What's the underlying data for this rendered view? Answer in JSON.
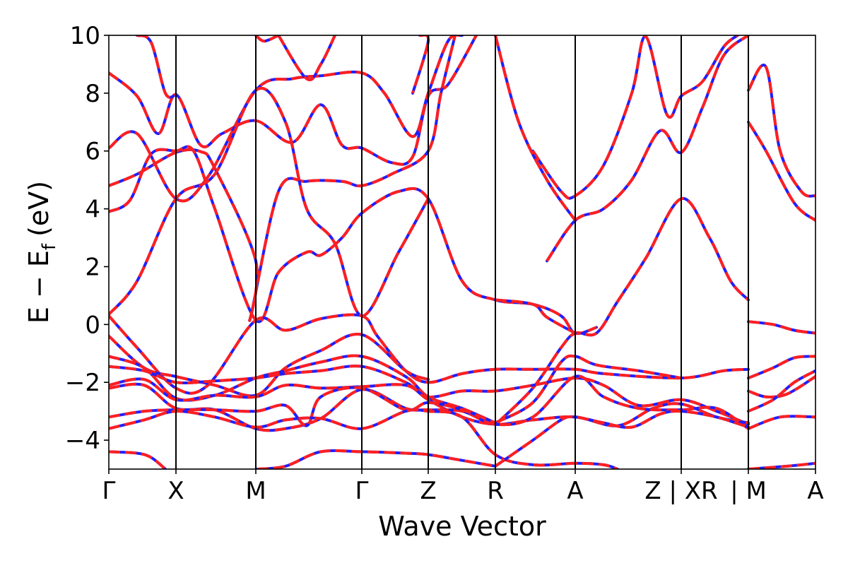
{
  "chart_data": {
    "type": "line",
    "title": "",
    "xlabel": "Wave Vector",
    "ylabel": "E − E",
    "ylabel_subscript": "f",
    "ylabel_unit": "(eV)",
    "ylim": [
      -5,
      10
    ],
    "yticks": [
      {
        "value": -4,
        "label": "−4"
      },
      {
        "value": -2,
        "label": "−2"
      },
      {
        "value": 0,
        "label": "0"
      },
      {
        "value": 2,
        "label": "2"
      },
      {
        "value": 4,
        "label": "4"
      },
      {
        "value": 6,
        "label": "6"
      },
      {
        "value": 8,
        "label": "8"
      },
      {
        "value": 10,
        "label": "10"
      }
    ],
    "xlim": [
      0,
      1
    ],
    "kpoints": [
      {
        "label": "Γ",
        "x": 0.0
      },
      {
        "label": "X",
        "x": 0.095
      },
      {
        "label": "M",
        "x": 0.208
      },
      {
        "label": "Γ",
        "x": 0.358
      },
      {
        "label": "Z",
        "x": 0.452
      },
      {
        "label": "R",
        "x": 0.547
      },
      {
        "label": "A",
        "x": 0.66
      },
      {
        "label": "Z | XR",
        "x": 0.81
      },
      {
        "label": "| M",
        "x": 0.905
      },
      {
        "label": "A",
        "x": 1.0
      }
    ],
    "legend": "none",
    "grid": false,
    "series_colors": {
      "solid": "#1f1fff",
      "dashed": "#ff1f1f"
    },
    "bands": [
      [
        [
          0,
          8.7
        ],
        [
          0.04,
          7.9
        ],
        [
          0.07,
          6.6
        ],
        [
          0.095,
          7.95
        ],
        [
          0.13,
          6.2
        ],
        [
          0.16,
          6.6
        ],
        [
          0.208,
          7.05
        ],
        [
          0.26,
          6.3
        ],
        [
          0.3,
          7.6
        ],
        [
          0.33,
          6.2
        ],
        [
          0.358,
          6.1
        ],
        [
          0.4,
          5.6
        ],
        [
          0.43,
          5.8
        ],
        [
          0.452,
          7.9
        ],
        [
          0.48,
          8.3
        ],
        [
          0.52,
          10.0
        ]
      ],
      [
        [
          0,
          6.1
        ],
        [
          0.04,
          6.6
        ],
        [
          0.095,
          4.35
        ],
        [
          0.14,
          5.1
        ],
        [
          0.208,
          8.1
        ],
        [
          0.26,
          8.5
        ],
        [
          0.3,
          8.6
        ],
        [
          0.358,
          8.7
        ],
        [
          0.39,
          8.0
        ],
        [
          0.43,
          6.5
        ],
        [
          0.452,
          8.0
        ],
        [
          0.48,
          9.8
        ],
        [
          0.5,
          10.0
        ]
      ],
      [
        [
          0,
          4.8
        ],
        [
          0.04,
          5.2
        ],
        [
          0.095,
          5.95
        ],
        [
          0.13,
          5.98
        ],
        [
          0.15,
          5.4
        ],
        [
          0.208,
          2.2
        ],
        [
          0.2,
          0.2
        ],
        [
          0.24,
          4.6
        ],
        [
          0.28,
          4.95
        ],
        [
          0.33,
          4.95
        ],
        [
          0.358,
          4.8
        ],
        [
          0.4,
          5.2
        ],
        [
          0.452,
          6.0
        ],
        [
          0.47,
          8.0
        ],
        [
          0.49,
          10.0
        ]
      ],
      [
        [
          0,
          3.9
        ],
        [
          0.03,
          4.3
        ],
        [
          0.06,
          5.9
        ],
        [
          0.095,
          6.0
        ],
        [
          0.12,
          6.0
        ],
        [
          0.15,
          4.0
        ],
        [
          0.208,
          0.15
        ],
        [
          0.24,
          1.8
        ],
        [
          0.28,
          2.5
        ],
        [
          0.3,
          2.4
        ],
        [
          0.33,
          3.0
        ],
        [
          0.358,
          3.85
        ],
        [
          0.41,
          4.6
        ],
        [
          0.452,
          4.35
        ],
        [
          0.5,
          1.5
        ],
        [
          0.547,
          0.85
        ],
        [
          0.6,
          0.7
        ],
        [
          0.64,
          0.3
        ],
        [
          0.66,
          -0.3
        ],
        [
          0.69,
          -0.1
        ]
      ],
      [
        [
          0,
          0.35
        ],
        [
          0.04,
          1.5
        ],
        [
          0.095,
          4.35
        ],
        [
          0.15,
          5.2
        ],
        [
          0.208,
          8.1
        ],
        [
          0.25,
          7.0
        ],
        [
          0.28,
          4.0
        ],
        [
          0.32,
          2.8
        ],
        [
          0.358,
          0.3
        ],
        [
          0.41,
          2.5
        ],
        [
          0.452,
          4.35
        ]
      ],
      [
        [
          0,
          0.3
        ],
        [
          0.04,
          -0.8
        ],
        [
          0.095,
          -2.2
        ],
        [
          0.14,
          -2.1
        ],
        [
          0.208,
          0.15
        ],
        [
          0.25,
          -0.2
        ],
        [
          0.3,
          0.2
        ],
        [
          0.358,
          0.3
        ],
        [
          0.38,
          -0.4
        ],
        [
          0.42,
          -1.6
        ],
        [
          0.452,
          -2.0
        ],
        [
          0.5,
          -1.7
        ],
        [
          0.547,
          -1.55
        ],
        [
          0.6,
          -1.55
        ],
        [
          0.66,
          -1.55
        ],
        [
          0.7,
          -1.7
        ],
        [
          0.81,
          -1.85
        ],
        [
          0.87,
          -1.6
        ],
        [
          0.905,
          -1.55
        ]
      ],
      [
        [
          0.55,
          -3.4
        ],
        [
          0.6,
          -2.2
        ],
        [
          0.64,
          -0.8
        ],
        [
          0.66,
          -0.3
        ],
        [
          0.69,
          -0.3
        ],
        [
          0.72,
          0.8
        ],
        [
          0.76,
          2.3
        ],
        [
          0.81,
          4.35
        ],
        [
          0.85,
          3.0
        ],
        [
          0.88,
          1.5
        ],
        [
          0.905,
          0.85
        ]
      ],
      [
        [
          0.547,
          -3.4
        ],
        [
          0.6,
          -2.7
        ],
        [
          0.64,
          -1.3
        ],
        [
          0.66,
          -1.1
        ],
        [
          0.69,
          -1.4
        ],
        [
          0.75,
          -1.6
        ],
        [
          0.81,
          -1.85
        ]
      ],
      [
        [
          0.62,
          2.2
        ],
        [
          0.66,
          3.6
        ],
        [
          0.7,
          4.0
        ],
        [
          0.74,
          5.0
        ],
        [
          0.78,
          6.7
        ],
        [
          0.81,
          5.95
        ],
        [
          0.84,
          7.5
        ],
        [
          0.87,
          9.3
        ],
        [
          0.905,
          10.0
        ]
      ],
      [
        [
          0.6,
          6.0
        ],
        [
          0.64,
          4.6
        ],
        [
          0.66,
          4.45
        ],
        [
          0.7,
          5.5
        ],
        [
          0.74,
          8.0
        ],
        [
          0.76,
          9.95
        ],
        [
          0.79,
          7.25
        ],
        [
          0.81,
          7.9
        ],
        [
          0.84,
          8.4
        ],
        [
          0.87,
          9.6
        ],
        [
          0.89,
          10.0
        ]
      ],
      [
        [
          0.905,
          8.1
        ],
        [
          0.93,
          8.9
        ],
        [
          0.95,
          6.0
        ],
        [
          0.98,
          4.6
        ],
        [
          1.0,
          4.45
        ]
      ],
      [
        [
          0.905,
          7.0
        ],
        [
          0.93,
          6.0
        ],
        [
          0.97,
          4.2
        ],
        [
          1.0,
          3.6
        ]
      ],
      [
        [
          0.905,
          0.1
        ],
        [
          0.94,
          0.0
        ],
        [
          0.97,
          -0.2
        ],
        [
          1.0,
          -0.3
        ]
      ],
      [
        [
          0.905,
          -1.85
        ],
        [
          0.94,
          -1.5
        ],
        [
          0.97,
          -1.15
        ],
        [
          1.0,
          -1.1
        ]
      ],
      [
        [
          0.905,
          -2.3
        ],
        [
          0.93,
          -2.5
        ],
        [
          0.96,
          -2.4
        ],
        [
          1.0,
          -1.8
        ]
      ],
      [
        [
          0.905,
          -3.0
        ],
        [
          0.94,
          -2.6
        ],
        [
          0.97,
          -2.0
        ],
        [
          1.0,
          -1.6
        ]
      ],
      [
        [
          0.905,
          -3.6
        ],
        [
          0.95,
          -3.2
        ],
        [
          1.0,
          -3.2
        ]
      ],
      [
        [
          0.905,
          -5.0
        ],
        [
          0.96,
          -4.9
        ],
        [
          1.0,
          -4.8
        ]
      ],
      [
        [
          0,
          -0.4
        ],
        [
          0.05,
          -1.5
        ],
        [
          0.095,
          -1.8
        ],
        [
          0.15,
          -2.1
        ],
        [
          0.208,
          -2.45
        ],
        [
          0.25,
          -1.5
        ],
        [
          0.3,
          -0.9
        ],
        [
          0.358,
          -0.35
        ],
        [
          0.42,
          -1.6
        ],
        [
          0.452,
          -1.9
        ]
      ],
      [
        [
          0,
          -1.1
        ],
        [
          0.05,
          -1.5
        ],
        [
          0.095,
          -2.55
        ],
        [
          0.15,
          -2.45
        ],
        [
          0.208,
          -1.85
        ],
        [
          0.25,
          -1.6
        ],
        [
          0.3,
          -1.3
        ],
        [
          0.358,
          -1.1
        ],
        [
          0.42,
          -1.8
        ],
        [
          0.452,
          -2.5
        ],
        [
          0.5,
          -2.9
        ],
        [
          0.547,
          -3.4
        ]
      ],
      [
        [
          0,
          -1.45
        ],
        [
          0.05,
          -1.6
        ],
        [
          0.095,
          -2.0
        ],
        [
          0.15,
          -1.95
        ],
        [
          0.208,
          -1.85
        ],
        [
          0.25,
          -1.7
        ],
        [
          0.3,
          -1.6
        ],
        [
          0.358,
          -1.45
        ],
        [
          0.42,
          -2.0
        ],
        [
          0.452,
          -2.5
        ],
        [
          0.5,
          -2.3
        ],
        [
          0.547,
          -2.3
        ],
        [
          0.6,
          -2.1
        ],
        [
          0.66,
          -1.85
        ],
        [
          0.7,
          -2.1
        ],
        [
          0.75,
          -2.8
        ],
        [
          0.81,
          -2.6
        ],
        [
          0.86,
          -3.0
        ],
        [
          0.905,
          -3.45
        ]
      ],
      [
        [
          0,
          -2.1
        ],
        [
          0.05,
          -1.9
        ],
        [
          0.095,
          -2.6
        ],
        [
          0.15,
          -2.45
        ],
        [
          0.208,
          -2.5
        ],
        [
          0.25,
          -2.1
        ],
        [
          0.3,
          -2.2
        ],
        [
          0.358,
          -2.15
        ],
        [
          0.42,
          -2.1
        ],
        [
          0.452,
          -2.6
        ],
        [
          0.5,
          -3.2
        ],
        [
          0.547,
          -3.45
        ],
        [
          0.6,
          -3.3
        ],
        [
          0.66,
          -3.2
        ],
        [
          0.72,
          -3.5
        ],
        [
          0.77,
          -2.9
        ],
        [
          0.81,
          -2.75
        ],
        [
          0.86,
          -3.2
        ],
        [
          0.905,
          -3.4
        ]
      ],
      [
        [
          0,
          -2.2
        ],
        [
          0.05,
          -2.1
        ],
        [
          0.095,
          -2.9
        ],
        [
          0.15,
          -2.95
        ],
        [
          0.208,
          -3.6
        ],
        [
          0.25,
          -3.6
        ],
        [
          0.3,
          -3.25
        ],
        [
          0.358,
          -2.25
        ],
        [
          0.42,
          -2.9
        ],
        [
          0.452,
          -2.95
        ],
        [
          0.5,
          -3.0
        ],
        [
          0.547,
          -3.45
        ],
        [
          0.6,
          -3.2
        ],
        [
          0.66,
          -1.8
        ],
        [
          0.7,
          -2.5
        ],
        [
          0.75,
          -2.9
        ],
        [
          0.81,
          -2.95
        ],
        [
          0.86,
          -2.9
        ],
        [
          0.905,
          -3.6
        ]
      ],
      [
        [
          0,
          -3.2
        ],
        [
          0.05,
          -3.0
        ],
        [
          0.095,
          -2.95
        ],
        [
          0.15,
          -2.95
        ],
        [
          0.208,
          -3.0
        ],
        [
          0.25,
          -2.8
        ],
        [
          0.28,
          -3.5
        ],
        [
          0.3,
          -2.5
        ],
        [
          0.358,
          -2.2
        ],
        [
          0.42,
          -2.95
        ],
        [
          0.452,
          -2.7
        ],
        [
          0.5,
          -2.95
        ],
        [
          0.547,
          -3.4
        ]
      ],
      [
        [
          0,
          -3.6
        ],
        [
          0.05,
          -3.3
        ],
        [
          0.095,
          -3.0
        ],
        [
          0.15,
          -3.2
        ],
        [
          0.208,
          -3.55
        ],
        [
          0.25,
          -3.3
        ],
        [
          0.3,
          -3.25
        ],
        [
          0.358,
          -3.6
        ],
        [
          0.42,
          -3.0
        ],
        [
          0.452,
          -3.0
        ],
        [
          0.5,
          -3.2
        ],
        [
          0.547,
          -4.5
        ],
        [
          0.6,
          -4.85
        ],
        [
          0.66,
          -4.8
        ],
        [
          0.7,
          -4.85
        ],
        [
          0.72,
          -5.0
        ]
      ],
      [
        [
          0,
          -4.4
        ],
        [
          0.04,
          -4.45
        ],
        [
          0.06,
          -4.6
        ],
        [
          0.08,
          -5.0
        ]
      ],
      [
        [
          0.21,
          -5.0
        ],
        [
          0.25,
          -4.9
        ],
        [
          0.3,
          -4.4
        ],
        [
          0.358,
          -4.4
        ],
        [
          0.42,
          -4.45
        ],
        [
          0.452,
          -4.5
        ],
        [
          0.5,
          -4.7
        ],
        [
          0.547,
          -4.9
        ]
      ],
      [
        [
          0.547,
          -4.9
        ],
        [
          0.6,
          -4.0
        ],
        [
          0.64,
          -3.3
        ],
        [
          0.66,
          -3.2
        ],
        [
          0.7,
          -3.4
        ],
        [
          0.74,
          -3.55
        ],
        [
          0.78,
          -3.1
        ],
        [
          0.81,
          -3.0
        ],
        [
          0.86,
          -3.2
        ],
        [
          0.905,
          -3.55
        ]
      ],
      [
        [
          0.547,
          0.85
        ],
        [
          0.6,
          0.7
        ],
        [
          0.62,
          0.25
        ],
        [
          0.66,
          -0.3
        ]
      ],
      [
        [
          0.24,
          10.0
        ],
        [
          0.28,
          8.5
        ],
        [
          0.3,
          9.0
        ],
        [
          0.32,
          10.0
        ]
      ],
      [
        [
          0.208,
          10.0
        ],
        [
          0.22,
          9.8
        ],
        [
          0.24,
          10.0
        ]
      ],
      [
        [
          0.04,
          10.0
        ],
        [
          0.06,
          9.75
        ],
        [
          0.08,
          8.0
        ],
        [
          0.095,
          7.95
        ]
      ],
      [
        [
          0.44,
          10.0
        ],
        [
          0.452,
          9.8
        ],
        [
          0.43,
          8.0
        ]
      ],
      [
        [
          0.547,
          10.0
        ],
        [
          0.58,
          7.0
        ],
        [
          0.62,
          5.0
        ],
        [
          0.66,
          3.6
        ]
      ]
    ]
  }
}
